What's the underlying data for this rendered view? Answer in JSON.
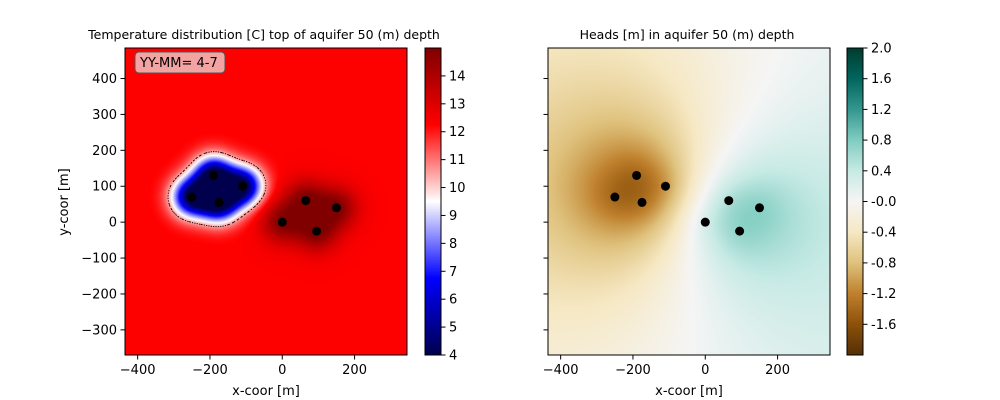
{
  "chart_data": [
    {
      "type": "heatmap",
      "title": "Temperature distribution [C] top of aquifer 50 (m) depth",
      "xlabel": "x-coor [m]",
      "ylabel": "y-coor [m]",
      "xlim": [
        -435,
        345
      ],
      "ylim": [
        -370,
        485
      ],
      "xticks": [
        -400,
        -200,
        0,
        200
      ],
      "yticks": [
        -300,
        -200,
        -100,
        0,
        100,
        200,
        300,
        400
      ],
      "xtick_labels": [
        "−400",
        "−200",
        "0",
        "200"
      ],
      "ytick_labels": [
        "−300",
        "−200",
        "−100",
        "0",
        "100",
        "200",
        "300",
        "400"
      ],
      "annotation": "YY-MM= 4-7",
      "colormap": "seismic",
      "colorbar": {
        "min": 4,
        "max": 15,
        "ticks": [
          4,
          5,
          6,
          7,
          8,
          9,
          10,
          11,
          12,
          13,
          14
        ],
        "tick_labels": [
          "4",
          "5",
          "6",
          "7",
          "8",
          "9",
          "10",
          "11",
          "12",
          "13",
          "14"
        ]
      },
      "background_value": 12.3,
      "contour_level": 10.5,
      "cold_wells": [
        {
          "x": -250,
          "y": 70
        },
        {
          "x": -190,
          "y": 130
        },
        {
          "x": -175,
          "y": 55
        },
        {
          "x": -110,
          "y": 100
        }
      ],
      "warm_wells": [
        {
          "x": 0,
          "y": 0
        },
        {
          "x": 65,
          "y": 60
        },
        {
          "x": 95,
          "y": -25
        },
        {
          "x": 150,
          "y": 40
        }
      ]
    },
    {
      "type": "heatmap",
      "title": "Heads [m] in aquifer 50 (m) depth",
      "xlabel": "x-coor [m]",
      "ylabel": "",
      "xlim": [
        -435,
        345
      ],
      "ylim": [
        -370,
        485
      ],
      "xticks": [
        -400,
        -200,
        0,
        200
      ],
      "xtick_labels": [
        "−400",
        "−200",
        "0",
        "200"
      ],
      "colormap": "BrBG",
      "colorbar": {
        "min": -2.0,
        "max": 2.0,
        "ticks": [
          -1.6,
          -1.2,
          -0.8,
          -0.4,
          0.0,
          0.4,
          0.8,
          1.2,
          1.6,
          2.0
        ],
        "tick_labels": [
          "-1.6",
          "-1.2",
          "-0.8",
          "-0.4",
          "-0.0",
          "0.4",
          "0.8",
          "1.2",
          "1.6",
          "2.0"
        ]
      },
      "extraction_wells": [
        {
          "x": -250,
          "y": 70
        },
        {
          "x": -190,
          "y": 130
        },
        {
          "x": -175,
          "y": 55
        },
        {
          "x": -110,
          "y": 100
        }
      ],
      "injection_wells": [
        {
          "x": 0,
          "y": 0
        },
        {
          "x": 65,
          "y": 60
        },
        {
          "x": 95,
          "y": -25
        },
        {
          "x": 150,
          "y": 40
        }
      ]
    }
  ]
}
